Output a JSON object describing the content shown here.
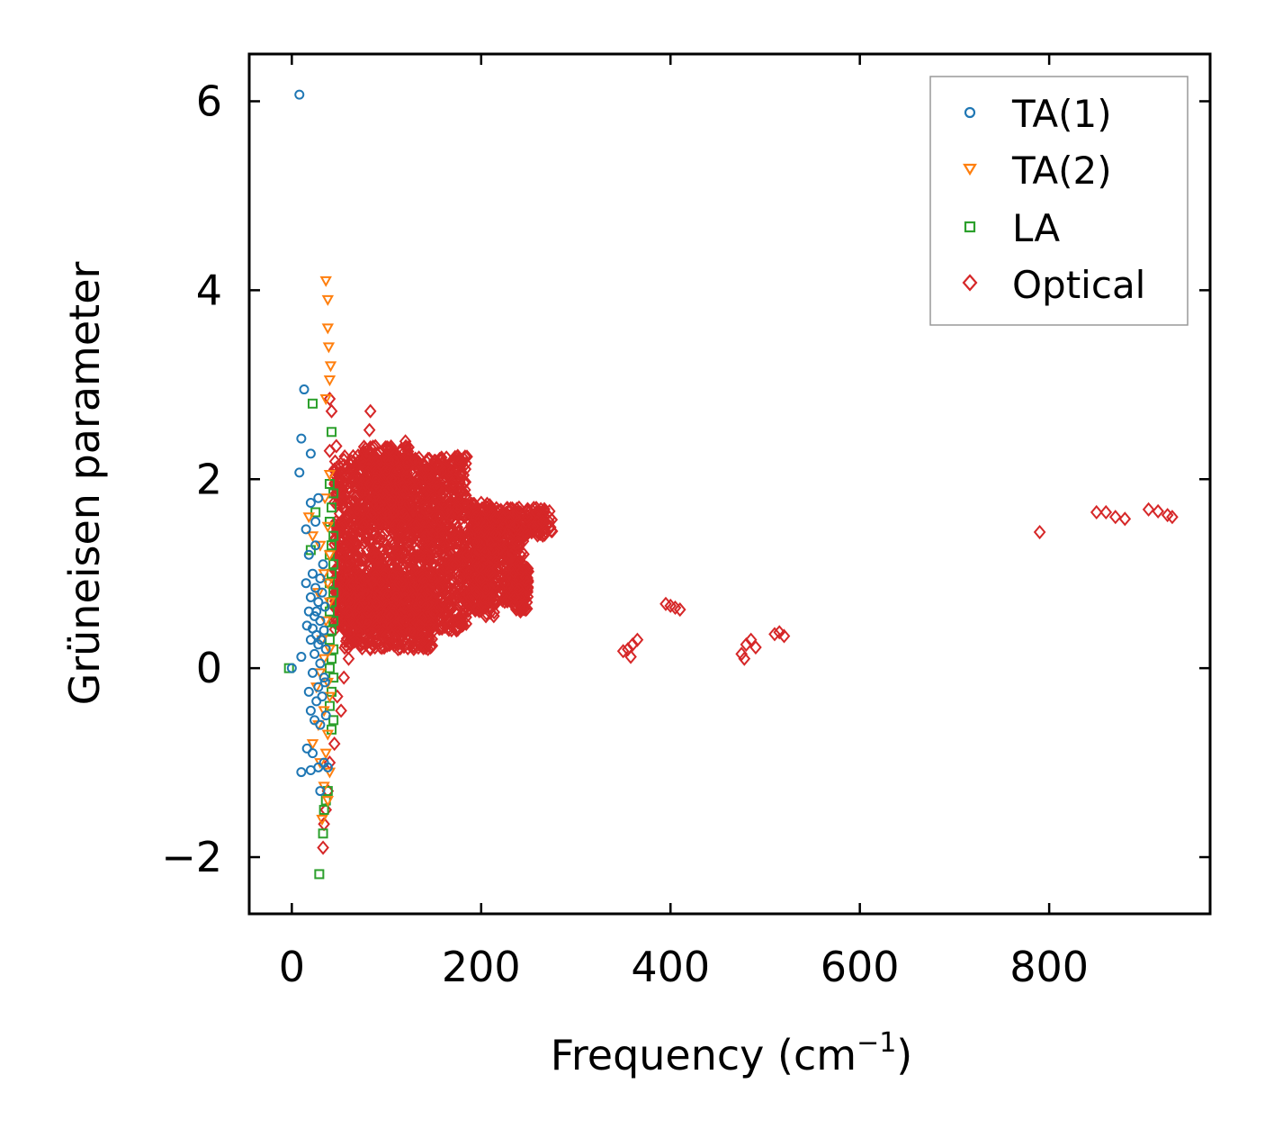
{
  "chart_data": {
    "type": "scatter",
    "xlabel": "Frequency (cm",
    "xlabel_superscript": "−1",
    "xlabel_suffix": ")",
    "ylabel": "Grüneisen parameter",
    "xlim": [
      -45,
      970
    ],
    "ylim": [
      -2.6,
      6.5
    ],
    "x_ticks": [
      0,
      200,
      400,
      600,
      800
    ],
    "y_ticks": [
      -2,
      0,
      2,
      4,
      6
    ],
    "y_tick_labels": [
      "−2",
      "0",
      "2",
      "4",
      "6"
    ],
    "legend_position": "top-right",
    "series": [
      {
        "name": "TA(1)",
        "marker": "circle",
        "color": "#1f77b4",
        "points": [
          [
            8,
            6.07
          ],
          [
            13,
            2.95
          ],
          [
            10,
            2.43
          ],
          [
            20,
            2.27
          ],
          [
            8,
            2.07
          ],
          [
            15,
            1.47
          ],
          [
            25,
            1.55
          ],
          [
            20,
            1.75
          ],
          [
            28,
            1.8
          ],
          [
            18,
            1.2
          ],
          [
            22,
            1.0
          ],
          [
            30,
            0.95
          ],
          [
            15,
            0.9
          ],
          [
            25,
            0.85
          ],
          [
            32,
            0.8
          ],
          [
            20,
            0.75
          ],
          [
            28,
            0.7
          ],
          [
            35,
            0.65
          ],
          [
            18,
            0.6
          ],
          [
            24,
            0.55
          ],
          [
            30,
            0.5
          ],
          [
            16,
            0.45
          ],
          [
            22,
            0.42
          ],
          [
            34,
            0.4
          ],
          [
            26,
            0.35
          ],
          [
            20,
            0.3
          ],
          [
            28,
            0.25
          ],
          [
            36,
            0.2
          ],
          [
            24,
            0.15
          ],
          [
            10,
            0.12
          ],
          [
            30,
            0.05
          ],
          [
            0,
            0.0
          ],
          [
            22,
            -0.05
          ],
          [
            34,
            -0.1
          ],
          [
            28,
            -0.2
          ],
          [
            18,
            -0.25
          ],
          [
            32,
            -0.3
          ],
          [
            26,
            -0.35
          ],
          [
            20,
            -0.45
          ],
          [
            36,
            -0.5
          ],
          [
            24,
            -0.55
          ],
          [
            30,
            -0.6
          ],
          [
            16,
            -0.85
          ],
          [
            22,
            -0.9
          ],
          [
            34,
            -1.0
          ],
          [
            28,
            -1.05
          ],
          [
            20,
            -1.08
          ],
          [
            10,
            -1.1
          ],
          [
            38,
            -1.05
          ],
          [
            30,
            -1.3
          ],
          [
            25,
            1.3
          ],
          [
            33,
            1.1
          ],
          [
            26,
            0.6
          ],
          [
            31,
            0.3
          ],
          [
            35,
            -0.15
          ]
        ]
      },
      {
        "name": "TA(2)",
        "marker": "triangle-down",
        "color": "#ff7f0e",
        "points": [
          [
            36,
            4.1
          ],
          [
            38,
            3.9
          ],
          [
            38,
            3.6
          ],
          [
            39,
            3.4
          ],
          [
            41,
            3.2
          ],
          [
            40,
            3.05
          ],
          [
            36,
            2.85
          ],
          [
            40,
            2.05
          ],
          [
            35,
            1.8
          ],
          [
            18,
            1.6
          ],
          [
            22,
            1.4
          ],
          [
            38,
            1.5
          ],
          [
            30,
            1.3
          ],
          [
            40,
            1.2
          ],
          [
            34,
            1.0
          ],
          [
            38,
            0.9
          ],
          [
            28,
            0.8
          ],
          [
            40,
            0.7
          ],
          [
            36,
            0.5
          ],
          [
            32,
            0.3
          ],
          [
            40,
            0.2
          ],
          [
            34,
            0.1
          ],
          [
            30,
            -0.05
          ],
          [
            38,
            -0.15
          ],
          [
            26,
            -0.2
          ],
          [
            40,
            -0.3
          ],
          [
            34,
            -0.45
          ],
          [
            28,
            -0.6
          ],
          [
            38,
            -0.7
          ],
          [
            22,
            -0.8
          ],
          [
            36,
            -0.9
          ],
          [
            30,
            -1.0
          ],
          [
            40,
            -1.1
          ],
          [
            34,
            -1.25
          ],
          [
            38,
            -1.4
          ],
          [
            32,
            -1.6
          ]
        ]
      },
      {
        "name": "LA",
        "marker": "square",
        "color": "#2ca02c",
        "points": [
          [
            22,
            2.8
          ],
          [
            42,
            2.5
          ],
          [
            40,
            1.95
          ],
          [
            44,
            1.85
          ],
          [
            42,
            1.7
          ],
          [
            40,
            1.55
          ],
          [
            44,
            1.4
          ],
          [
            42,
            1.3
          ],
          [
            40,
            1.2
          ],
          [
            44,
            1.1
          ],
          [
            42,
            1.0
          ],
          [
            40,
            0.9
          ],
          [
            44,
            0.8
          ],
          [
            42,
            0.7
          ],
          [
            40,
            0.6
          ],
          [
            44,
            0.5
          ],
          [
            42,
            0.4
          ],
          [
            40,
            0.3
          ],
          [
            44,
            0.2
          ],
          [
            42,
            0.1
          ],
          [
            40,
            0.0
          ],
          [
            44,
            -0.1
          ],
          [
            42,
            -0.25
          ],
          [
            40,
            -0.4
          ],
          [
            44,
            -0.55
          ],
          [
            42,
            -0.65
          ],
          [
            38,
            -1.3
          ],
          [
            36,
            -1.4
          ],
          [
            34,
            -1.5
          ],
          [
            33,
            -1.75
          ],
          [
            29,
            -2.18
          ],
          [
            20,
            1.25
          ],
          [
            25,
            1.65
          ],
          [
            -3,
            0.0
          ]
        ]
      },
      {
        "name": "Optical",
        "marker": "diamond",
        "color": "#d62728",
        "points": [
          [
            40,
            2.85
          ],
          [
            42,
            2.72
          ],
          [
            83,
            2.72
          ],
          [
            82,
            2.52
          ],
          [
            40,
            2.3
          ],
          [
            47,
            2.35
          ],
          [
            70,
            2.25
          ],
          [
            55,
            2.15
          ],
          [
            90,
            2.2
          ],
          [
            120,
            2.4
          ],
          [
            130,
            2.2
          ],
          [
            145,
            2.0
          ],
          [
            160,
            1.85
          ],
          [
            175,
            1.7
          ],
          [
            60,
            0.6
          ],
          [
            80,
            0.6
          ],
          [
            105,
            0.55
          ],
          [
            120,
            0.5
          ],
          [
            135,
            0.45
          ],
          [
            150,
            0.4
          ],
          [
            140,
            0.35
          ],
          [
            70,
            0.3
          ],
          [
            60,
            0.1
          ],
          [
            55,
            -0.1
          ],
          [
            48,
            -0.3
          ],
          [
            52,
            -0.45
          ],
          [
            45,
            -0.8
          ],
          [
            40,
            -1.0
          ],
          [
            38,
            -1.3
          ],
          [
            36,
            -1.5
          ],
          [
            34,
            -1.65
          ],
          [
            33,
            -1.9
          ],
          [
            200,
            1.75
          ],
          [
            215,
            1.6
          ],
          [
            230,
            1.55
          ],
          [
            240,
            1.7
          ],
          [
            255,
            1.5
          ],
          [
            265,
            1.55
          ],
          [
            275,
            1.45
          ],
          [
            185,
            1.2
          ],
          [
            195,
            0.8
          ],
          [
            205,
            0.55
          ],
          [
            225,
            0.9
          ],
          [
            235,
            0.75
          ],
          [
            245,
            0.65
          ],
          [
            178,
            0.95
          ],
          [
            170,
            1.1
          ],
          [
            165,
            0.65
          ],
          [
            155,
            0.85
          ],
          [
            350,
            0.18
          ],
          [
            355,
            0.2
          ],
          [
            360,
            0.25
          ],
          [
            365,
            0.3
          ],
          [
            358,
            0.12
          ],
          [
            395,
            0.68
          ],
          [
            400,
            0.66
          ],
          [
            405,
            0.64
          ],
          [
            410,
            0.62
          ],
          [
            475,
            0.15
          ],
          [
            480,
            0.25
          ],
          [
            485,
            0.3
          ],
          [
            478,
            0.1
          ],
          [
            490,
            0.22
          ],
          [
            510,
            0.36
          ],
          [
            515,
            0.38
          ],
          [
            520,
            0.34
          ],
          [
            790,
            1.44
          ],
          [
            850,
            1.65
          ],
          [
            860,
            1.65
          ],
          [
            870,
            1.6
          ],
          [
            880,
            1.58
          ],
          [
            905,
            1.68
          ],
          [
            915,
            1.66
          ],
          [
            925,
            1.62
          ],
          [
            930,
            1.6
          ]
        ],
        "clusters": [
          {
            "x": [
              45,
              185
            ],
            "y": [
              0.4,
              2.25
            ]
          },
          {
            "x": [
              55,
              150
            ],
            "y": [
              0.2,
              1.0
            ]
          },
          {
            "x": [
              75,
              125
            ],
            "y": [
              1.5,
              2.35
            ]
          },
          {
            "x": [
              185,
              215
            ],
            "y": [
              0.55,
              1.75
            ]
          },
          {
            "x": [
              195,
              245
            ],
            "y": [
              0.7,
              1.6
            ]
          },
          {
            "x": [
              215,
              275
            ],
            "y": [
              1.4,
              1.7
            ]
          },
          {
            "x": [
              235,
              250
            ],
            "y": [
              0.6,
              1.1
            ]
          }
        ]
      }
    ]
  }
}
